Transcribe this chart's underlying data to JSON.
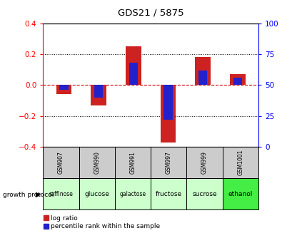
{
  "title": "GDS21 / 5875",
  "samples": [
    "GSM907",
    "GSM990",
    "GSM991",
    "GSM997",
    "GSM999",
    "GSM1001"
  ],
  "protocols": [
    "raffinose",
    "glucose",
    "galactose",
    "fructose",
    "sucrose",
    "ethanol"
  ],
  "log_ratios": [
    -0.06,
    -0.13,
    0.25,
    -0.37,
    0.18,
    0.07
  ],
  "percentile_ranks": [
    46,
    40,
    68,
    22,
    62,
    56
  ],
  "ylim_left": [
    -0.4,
    0.4
  ],
  "ylim_right": [
    0,
    100
  ],
  "yticks_left": [
    -0.4,
    -0.2,
    0.0,
    0.2,
    0.4
  ],
  "yticks_right": [
    0,
    25,
    50,
    75,
    100
  ],
  "red_color": "#cc2222",
  "blue_color": "#2222cc",
  "protocol_colors": [
    "#ccffcc",
    "#ccffcc",
    "#ccffcc",
    "#ccffcc",
    "#ccffcc",
    "#44ee44"
  ],
  "legend_red": "log ratio",
  "legend_blue": "percentile rank within the sample",
  "growth_protocol_label": "growth protocol"
}
